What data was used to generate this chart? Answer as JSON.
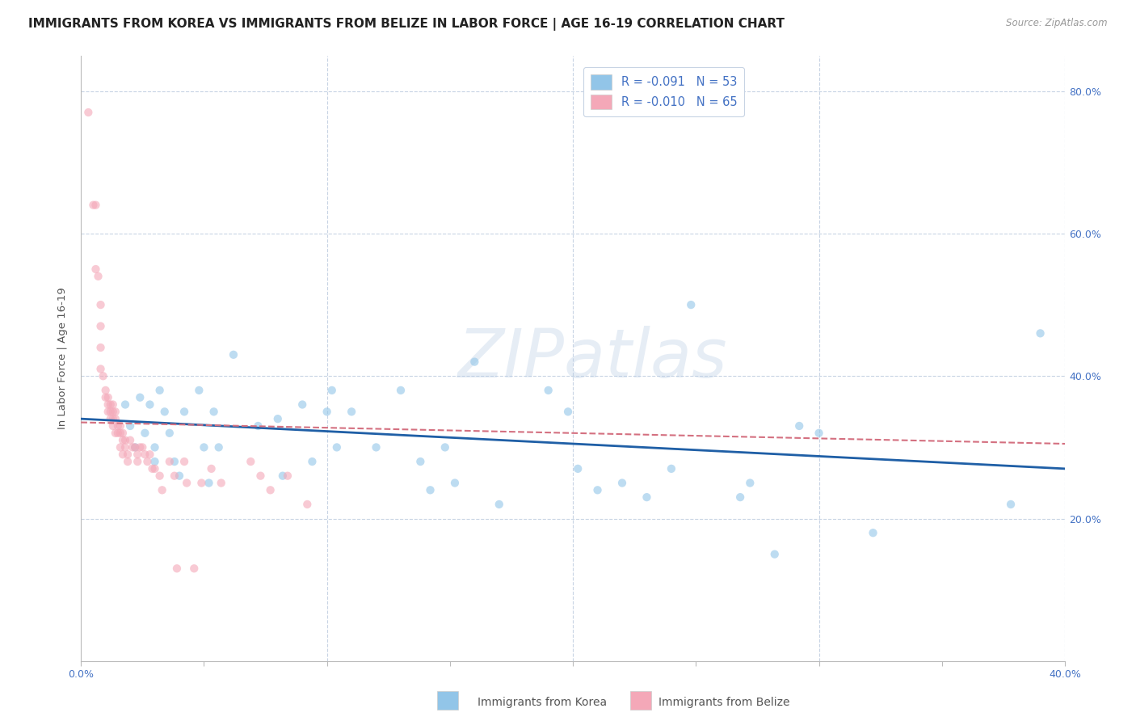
{
  "title": "IMMIGRANTS FROM KOREA VS IMMIGRANTS FROM BELIZE IN LABOR FORCE | AGE 16-19 CORRELATION CHART",
  "source": "Source: ZipAtlas.com",
  "ylabel": "In Labor Force | Age 16-19",
  "xlim": [
    0.0,
    0.4
  ],
  "ylim": [
    0.0,
    0.85
  ],
  "xtick_positions": [
    0.0,
    0.05,
    0.1,
    0.15,
    0.2,
    0.25,
    0.3,
    0.35,
    0.4
  ],
  "xtick_major_labels": {
    "0.0": "0.0%",
    "0.40": "40.0%"
  },
  "ytick_positions": [
    0.0,
    0.2,
    0.4,
    0.6,
    0.8
  ],
  "ytick_labels_right": [
    "",
    "20.0%",
    "40.0%",
    "60.0%",
    "80.0%"
  ],
  "korea_color": "#92C5E8",
  "belize_color": "#F4A8B8",
  "watermark": "ZIPatlas",
  "legend_korea_label": "R = -0.091   N = 53",
  "legend_belize_label": "R = -0.010   N = 65",
  "korea_scatter_x": [
    0.018,
    0.02,
    0.022,
    0.024,
    0.026,
    0.028,
    0.03,
    0.03,
    0.032,
    0.034,
    0.036,
    0.038,
    0.04,
    0.042,
    0.048,
    0.05,
    0.052,
    0.054,
    0.056,
    0.062,
    0.072,
    0.08,
    0.082,
    0.09,
    0.094,
    0.1,
    0.102,
    0.104,
    0.11,
    0.12,
    0.13,
    0.138,
    0.142,
    0.148,
    0.152,
    0.16,
    0.17,
    0.19,
    0.198,
    0.202,
    0.21,
    0.22,
    0.23,
    0.24,
    0.248,
    0.268,
    0.272,
    0.282,
    0.292,
    0.3,
    0.322,
    0.378,
    0.39
  ],
  "korea_scatter_y": [
    0.36,
    0.33,
    0.3,
    0.37,
    0.32,
    0.36,
    0.3,
    0.28,
    0.38,
    0.35,
    0.32,
    0.28,
    0.26,
    0.35,
    0.38,
    0.3,
    0.25,
    0.35,
    0.3,
    0.43,
    0.33,
    0.34,
    0.26,
    0.36,
    0.28,
    0.35,
    0.38,
    0.3,
    0.35,
    0.3,
    0.38,
    0.28,
    0.24,
    0.3,
    0.25,
    0.42,
    0.22,
    0.38,
    0.35,
    0.27,
    0.24,
    0.25,
    0.23,
    0.27,
    0.5,
    0.23,
    0.25,
    0.15,
    0.33,
    0.32,
    0.18,
    0.22,
    0.46
  ],
  "belize_scatter_x": [
    0.003,
    0.005,
    0.006,
    0.006,
    0.007,
    0.008,
    0.008,
    0.008,
    0.008,
    0.009,
    0.01,
    0.01,
    0.011,
    0.011,
    0.011,
    0.012,
    0.012,
    0.012,
    0.013,
    0.013,
    0.013,
    0.013,
    0.014,
    0.014,
    0.014,
    0.015,
    0.015,
    0.016,
    0.016,
    0.016,
    0.017,
    0.017,
    0.017,
    0.018,
    0.018,
    0.019,
    0.019,
    0.02,
    0.021,
    0.022,
    0.023,
    0.023,
    0.024,
    0.025,
    0.026,
    0.027,
    0.028,
    0.029,
    0.03,
    0.032,
    0.033,
    0.036,
    0.038,
    0.039,
    0.042,
    0.043,
    0.046,
    0.049,
    0.053,
    0.057,
    0.069,
    0.073,
    0.077,
    0.084,
    0.092
  ],
  "belize_scatter_y": [
    0.77,
    0.64,
    0.64,
    0.55,
    0.54,
    0.5,
    0.47,
    0.44,
    0.41,
    0.4,
    0.38,
    0.37,
    0.37,
    0.36,
    0.35,
    0.36,
    0.35,
    0.34,
    0.36,
    0.35,
    0.34,
    0.33,
    0.35,
    0.34,
    0.32,
    0.33,
    0.32,
    0.33,
    0.32,
    0.3,
    0.32,
    0.31,
    0.29,
    0.31,
    0.3,
    0.29,
    0.28,
    0.31,
    0.3,
    0.3,
    0.29,
    0.28,
    0.3,
    0.3,
    0.29,
    0.28,
    0.29,
    0.27,
    0.27,
    0.26,
    0.24,
    0.28,
    0.26,
    0.13,
    0.28,
    0.25,
    0.13,
    0.25,
    0.27,
    0.25,
    0.28,
    0.26,
    0.24,
    0.26,
    0.22
  ],
  "korea_trendline_x": [
    0.0,
    0.4
  ],
  "korea_trendline_y": [
    0.34,
    0.27
  ],
  "belize_trendline_x": [
    0.0,
    0.4
  ],
  "belize_trendline_y": [
    0.335,
    0.305
  ],
  "background_color": "#ffffff",
  "grid_color": "#c8d4e4",
  "title_fontsize": 11,
  "axis_label_fontsize": 9.5,
  "tick_fontsize": 9,
  "marker_size": 55,
  "marker_alpha": 0.6,
  "watermark_color": "#b8cce4",
  "watermark_fontsize": 60,
  "watermark_alpha": 0.35
}
